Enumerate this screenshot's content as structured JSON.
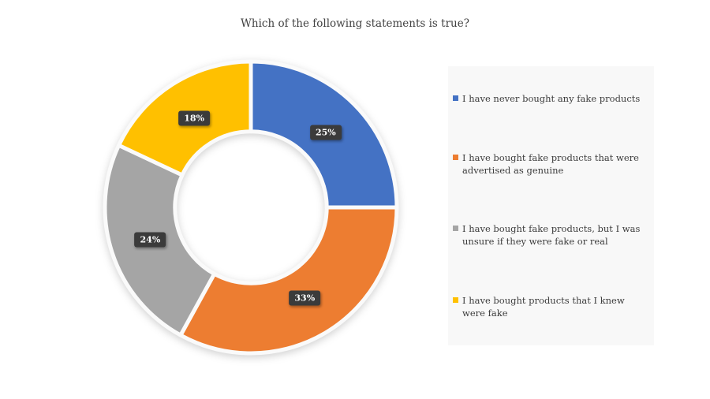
{
  "title": "Which of the following statements is true?",
  "chart_data": {
    "type": "pie",
    "subtype": "donut",
    "title": "Which of the following statements is true?",
    "categories": [
      "I have never bought any fake products",
      "I have bought fake products that were advertised as genuine",
      "I have bought fake products, but I was unsure if they were fake or real",
      "I have bought products that I knew were fake"
    ],
    "values": [
      25,
      33,
      24,
      18
    ],
    "data_labels": [
      "25%",
      "33%",
      "24%",
      "18%"
    ],
    "colors": [
      "#4472C4",
      "#ED7D31",
      "#A5A5A5",
      "#FFC000"
    ],
    "label_box_color": "#3B3B3B",
    "label_text_color": "#FFFFFF",
    "separator_color": "#FAFAFA",
    "legend_position": "right",
    "legend_background": "#F8F8F8",
    "start_angle_deg": 0,
    "direction": "clockwise",
    "donut_hole_ratio": 0.52
  }
}
